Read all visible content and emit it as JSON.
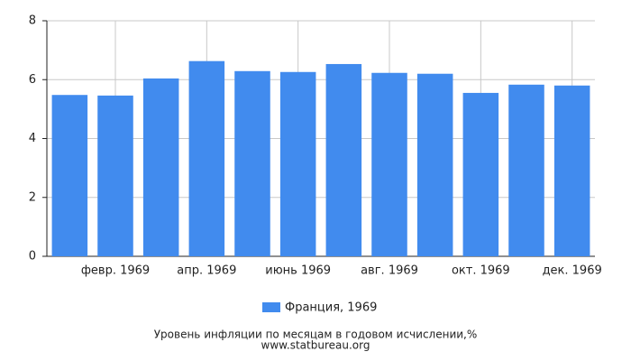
{
  "chart_data": {
    "type": "bar",
    "title": "Уровень инфляции по месяцам в годовом исчислении,%",
    "subtitle": "www.statbureau.org",
    "categories": [
      null,
      "февр. 1969",
      null,
      "апр. 1969",
      null,
      "июнь 1969",
      null,
      "авг. 1969",
      null,
      "окт. 1969",
      null,
      "дек. 1969"
    ],
    "series": [
      {
        "name": "Франция, 1969",
        "color": "#418bee",
        "values": [
          5.48,
          5.46,
          6.04,
          6.63,
          6.29,
          6.26,
          6.53,
          6.23,
          6.2,
          5.55,
          5.83,
          5.8
        ]
      }
    ],
    "ylim": [
      0,
      8
    ],
    "yticks": [
      0,
      2,
      4,
      6,
      8
    ],
    "grid": true
  }
}
